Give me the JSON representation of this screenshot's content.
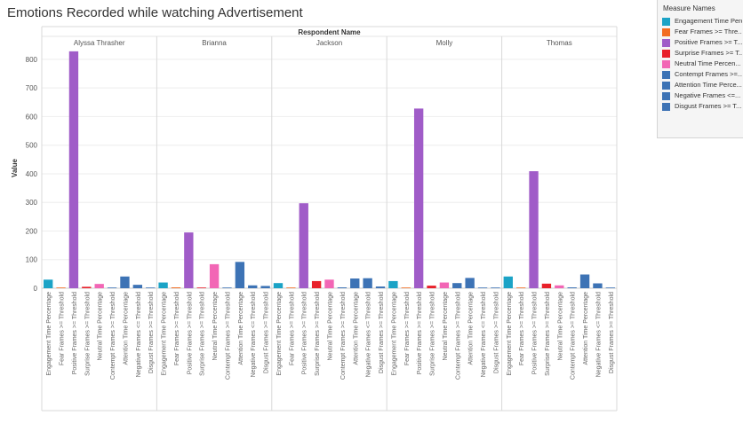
{
  "title": "Emotions Recorded while watching Advertisement",
  "legend": {
    "title": "Measure Names",
    "items": [
      {
        "label": "Engagement Time Perce...",
        "color": "#1ba3c6"
      },
      {
        "label": "Fear Frames >= Thre...",
        "color": "#f26c21"
      },
      {
        "label": "Positive Frames >= T...",
        "color": "#a05cc8"
      },
      {
        "label": "Surprise Frames >= T...",
        "color": "#e8202a"
      },
      {
        "label": "Neutral Time Percen...",
        "color": "#f266b5"
      },
      {
        "label": "Contempt Frames >=...",
        "color": "#3d73b5"
      },
      {
        "label": "Attention Time Perce...",
        "color": "#3d73b5"
      },
      {
        "label": "Negative Frames <=...",
        "color": "#3d73b5"
      },
      {
        "label": "Disgust Frames >= T...",
        "color": "#3d73b5"
      }
    ]
  },
  "chart_data": {
    "type": "bar",
    "title": "Emotions Recorded while watching Advertisement",
    "column_header": "Respondent Name",
    "ylabel": "Value",
    "ylim": [
      0,
      840
    ],
    "yticks": [
      0,
      100,
      200,
      300,
      400,
      500,
      600,
      700,
      800
    ],
    "categories": [
      "Engagement Time Percentage",
      "Fear Frames >= Threshold",
      "Positive Frames >= Threshold",
      "Surprise Frames >= Threshold",
      "Neutral Time Percentage",
      "Contempt Frames >= Threshold",
      "Attention Time Percentage",
      "Negative Frames <= Threshold",
      "Disgust Frames >= Threshold"
    ],
    "colors": [
      "#1ba3c6",
      "#f26c21",
      "#a05cc8",
      "#e8202a",
      "#f266b5",
      "#3d73b5",
      "#3d73b5",
      "#3d73b5",
      "#3d73b5"
    ],
    "panels": [
      {
        "name": "Alyssa Thrasher",
        "values": [
          30,
          0,
          828,
          5,
          15,
          2,
          41,
          12,
          2
        ]
      },
      {
        "name": "Brianna",
        "values": [
          20,
          3,
          195,
          2,
          84,
          2,
          92,
          10,
          8
        ]
      },
      {
        "name": "Jackson",
        "values": [
          18,
          0,
          297,
          25,
          30,
          3,
          34,
          35,
          6
        ]
      },
      {
        "name": "Molly",
        "values": [
          25,
          1,
          628,
          9,
          20,
          18,
          36,
          2,
          2
        ]
      },
      {
        "name": "Thomas",
        "values": [
          41,
          0,
          409,
          16,
          10,
          3,
          48,
          17,
          2
        ]
      }
    ]
  }
}
